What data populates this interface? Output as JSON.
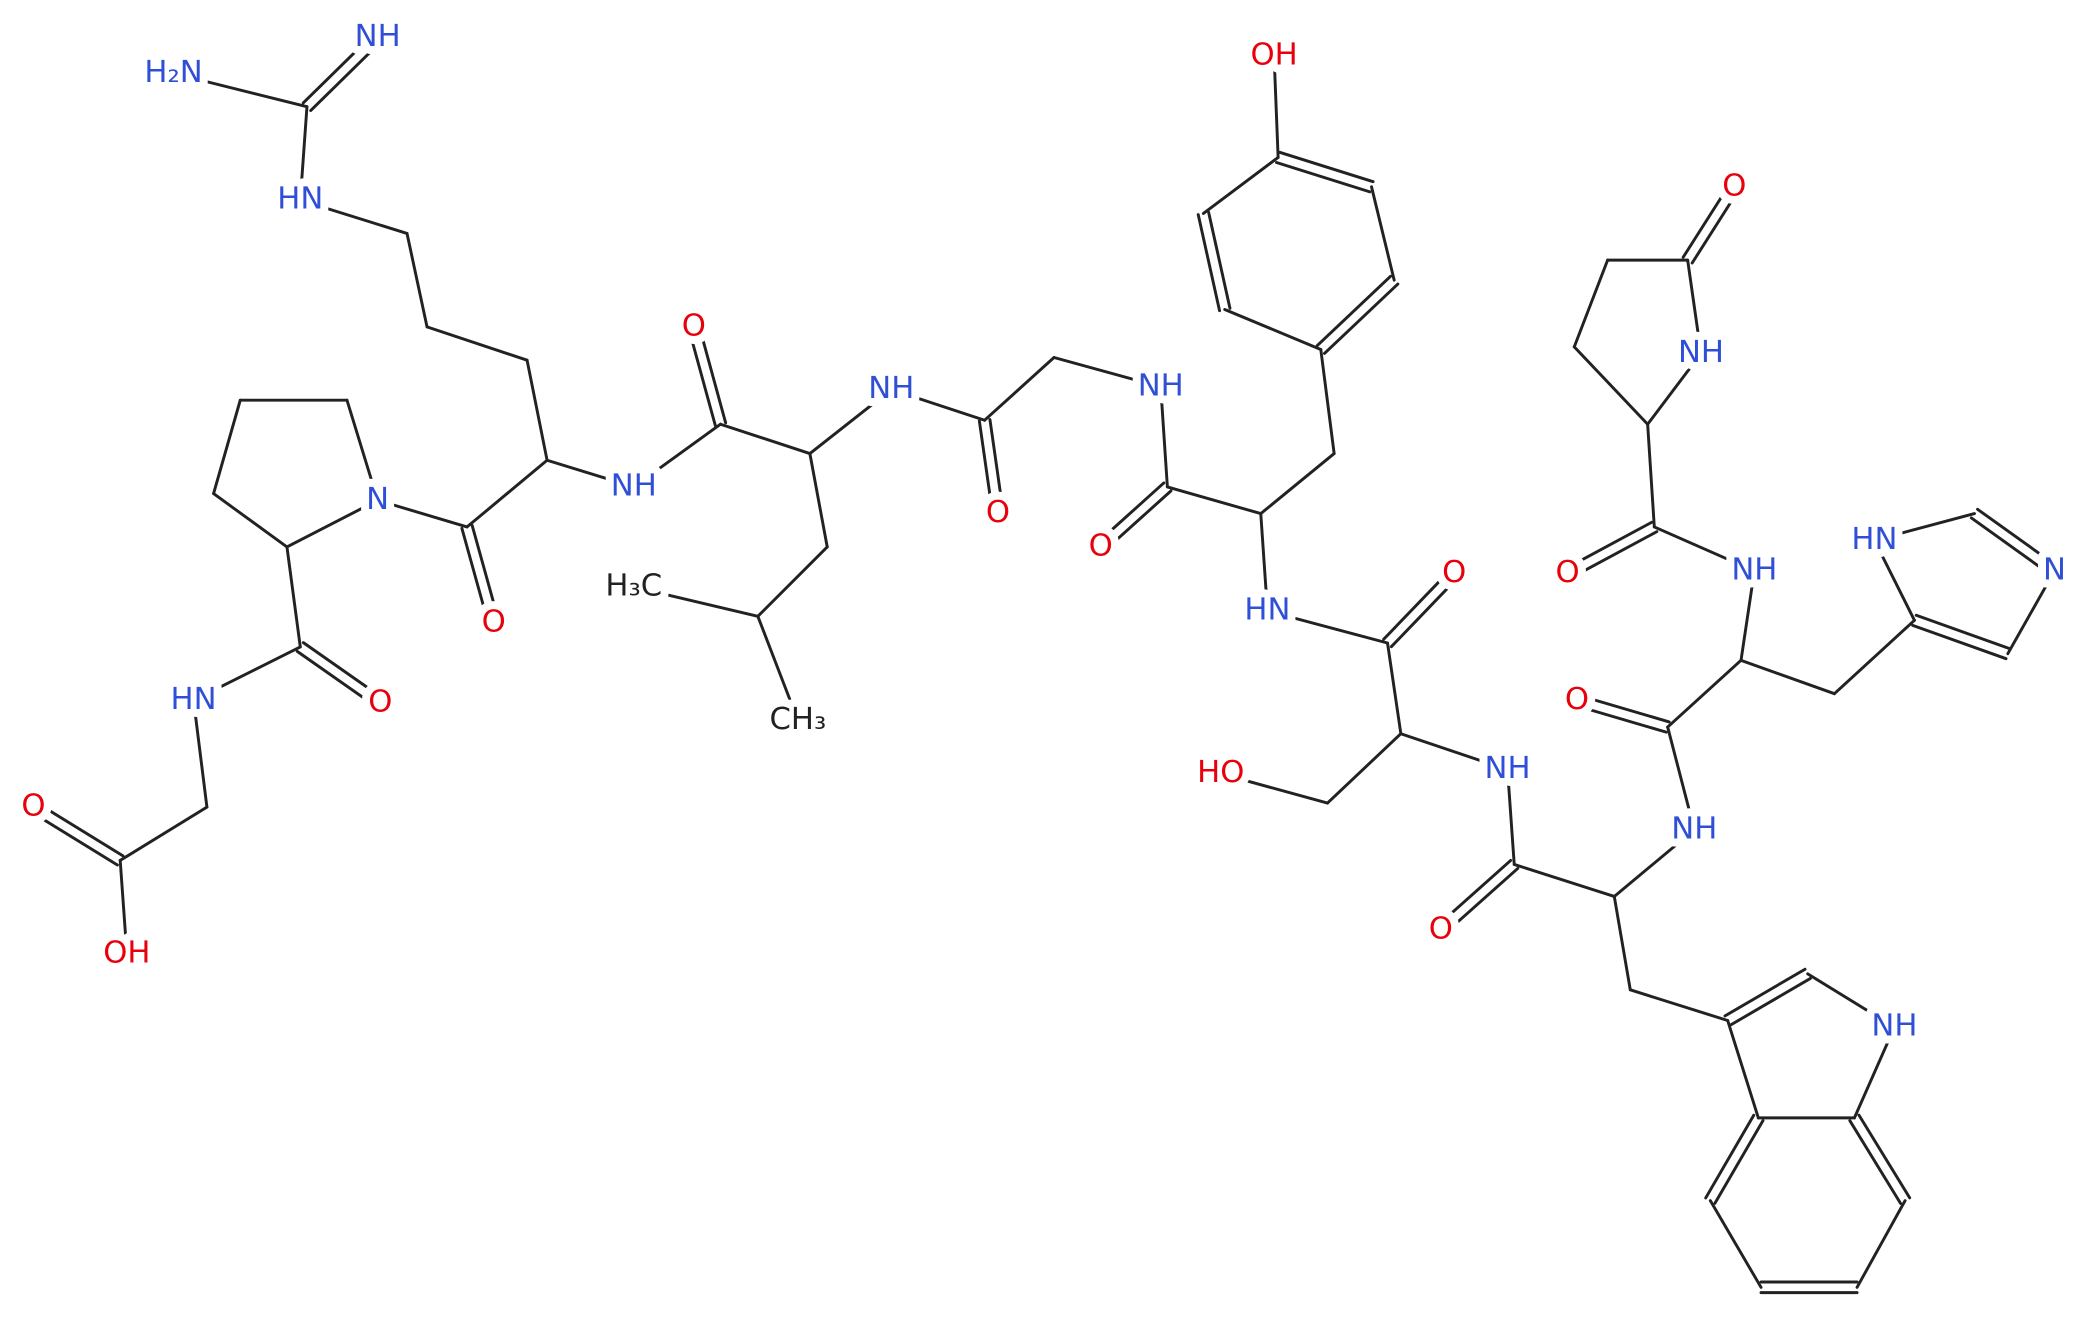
{
  "atoms": [
    {
      "label": "NH"
    },
    {
      "label": "H₂N"
    },
    {
      "label": "HN"
    },
    {
      "label": "N"
    },
    {
      "label": "O"
    },
    {
      "label": "NH"
    },
    {
      "label": "O"
    },
    {
      "label": "NH"
    },
    {
      "label": "H₃C"
    },
    {
      "label": "CH₃"
    },
    {
      "label": "O"
    },
    {
      "label": "NH"
    },
    {
      "label": "OH"
    },
    {
      "label": "O"
    },
    {
      "label": "HN"
    },
    {
      "label": "O"
    },
    {
      "label": "HO"
    },
    {
      "label": "NH"
    },
    {
      "label": "O"
    },
    {
      "label": "NH"
    },
    {
      "label": "NH"
    },
    {
      "label": "O"
    },
    {
      "label": "NH"
    },
    {
      "label": "HN"
    },
    {
      "label": "N"
    },
    {
      "label": "O"
    },
    {
      "label": "NH"
    },
    {
      "label": "O"
    },
    {
      "label": "O"
    },
    {
      "label": "HN"
    },
    {
      "label": "O"
    },
    {
      "label": "OH"
    }
  ]
}
